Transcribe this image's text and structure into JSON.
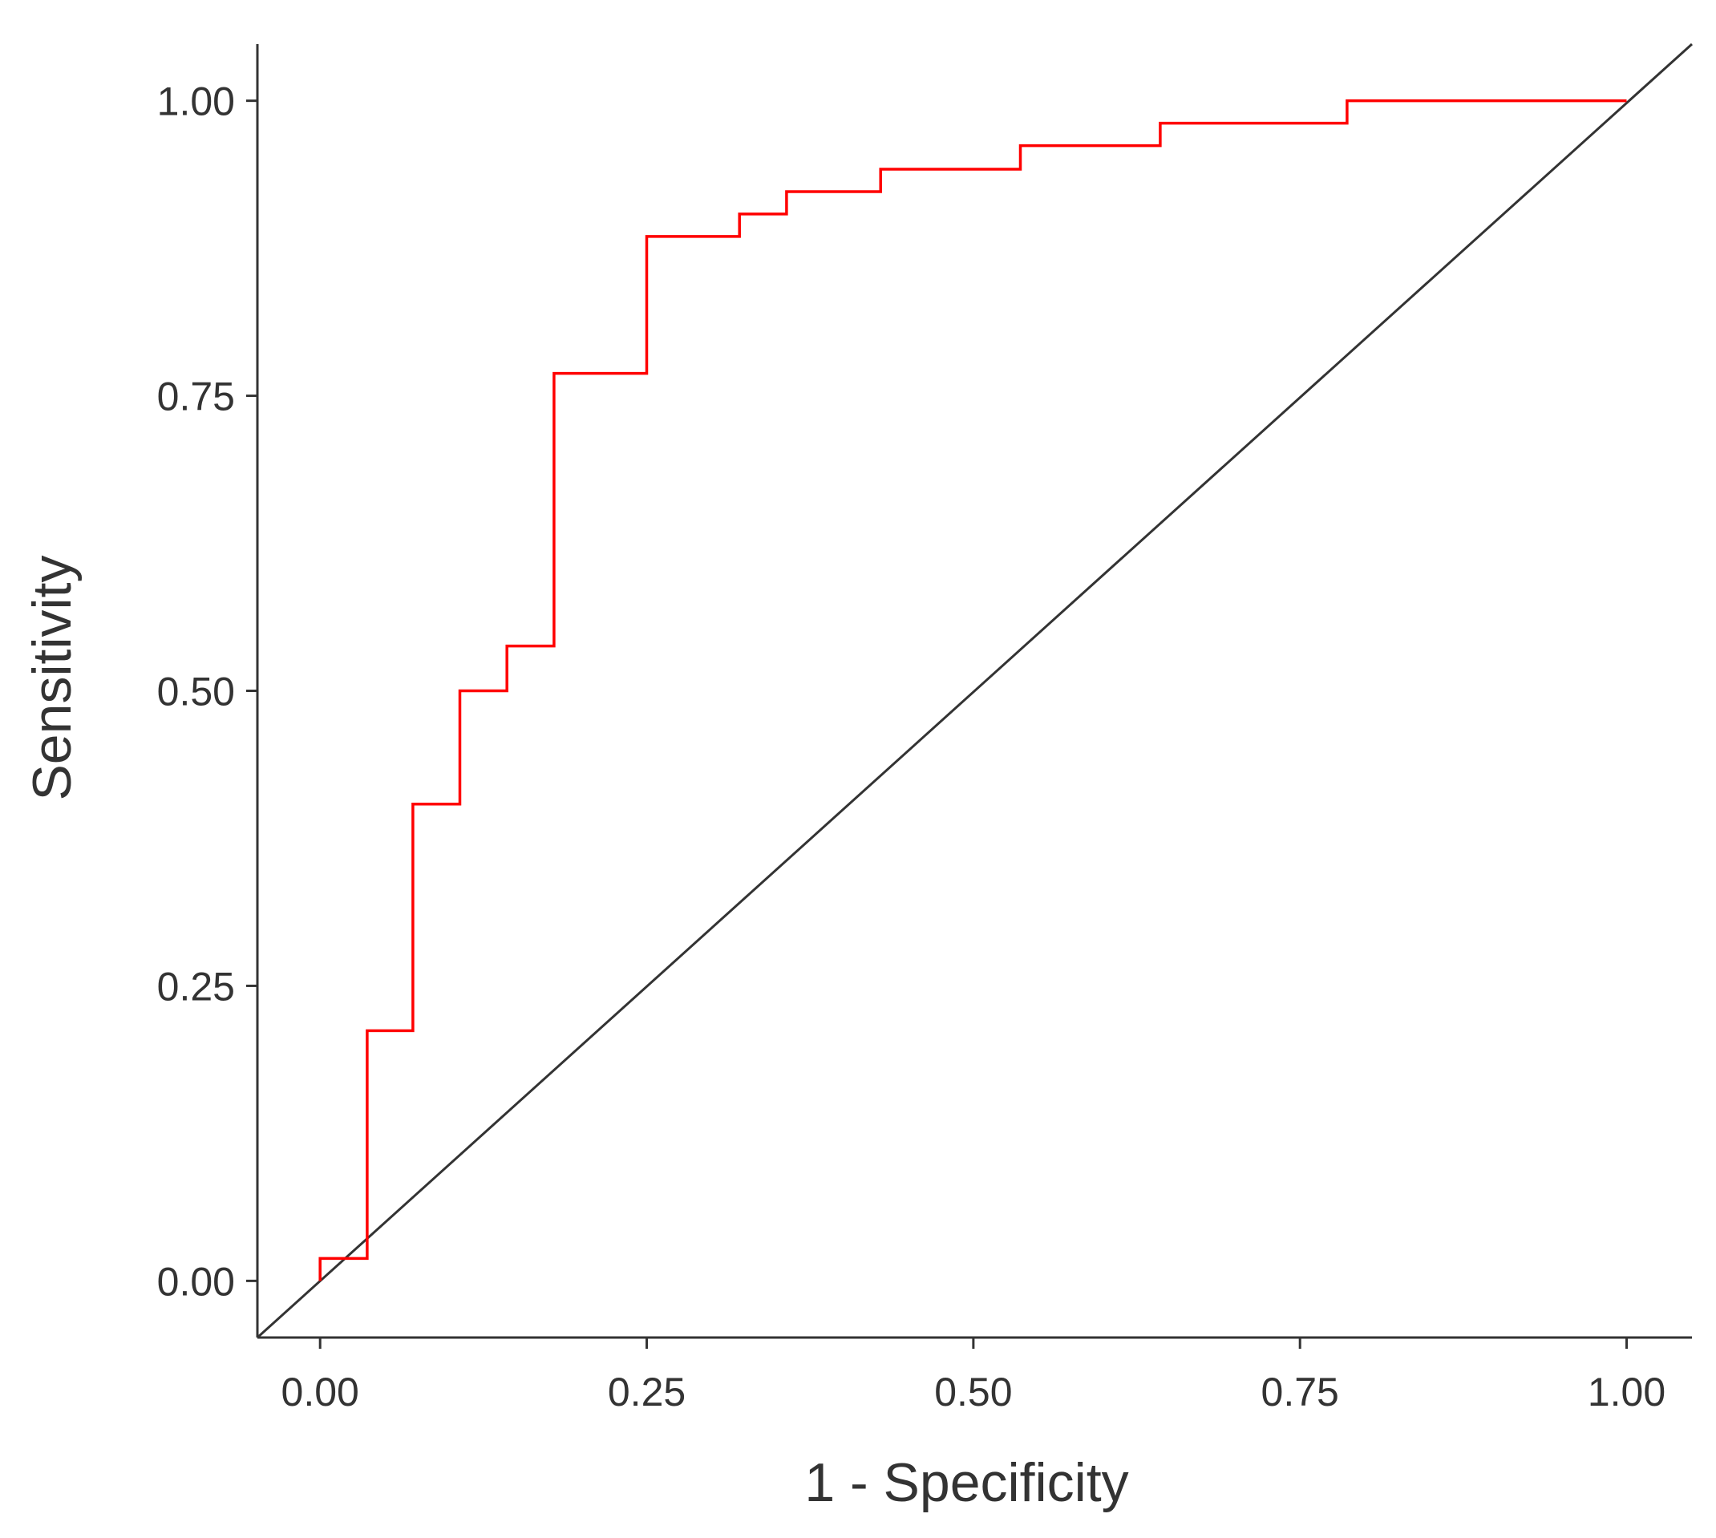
{
  "chart_data": {
    "type": "line",
    "xlabel": "1 - Specificity",
    "ylabel": "Sensitivity",
    "xlim": [
      -0.048,
      1.05
    ],
    "ylim": [
      -0.048,
      1.048
    ],
    "x_ticks": [
      0.0,
      0.25,
      0.5,
      0.75,
      1.0
    ],
    "x_tick_labels": [
      "0.00",
      "0.25",
      "0.50",
      "0.75",
      "1.00"
    ],
    "y_ticks": [
      0.0,
      0.25,
      0.5,
      0.75,
      1.0
    ],
    "y_tick_labels": [
      "0.00",
      "0.25",
      "0.50",
      "0.75",
      "1.00"
    ],
    "grid": false,
    "series": [
      {
        "color": "#ff0000",
        "step": true,
        "points": [
          [
            0.0,
            0.0
          ],
          [
            0.0,
            0.019
          ],
          [
            0.036,
            0.019
          ],
          [
            0.036,
            0.212
          ],
          [
            0.071,
            0.212
          ],
          [
            0.071,
            0.404
          ],
          [
            0.107,
            0.404
          ],
          [
            0.107,
            0.5
          ],
          [
            0.143,
            0.5
          ],
          [
            0.143,
            0.538
          ],
          [
            0.179,
            0.538
          ],
          [
            0.179,
            0.769
          ],
          [
            0.25,
            0.769
          ],
          [
            0.25,
            0.885
          ],
          [
            0.321,
            0.885
          ],
          [
            0.321,
            0.904
          ],
          [
            0.357,
            0.904
          ],
          [
            0.357,
            0.923
          ],
          [
            0.429,
            0.923
          ],
          [
            0.429,
            0.942
          ],
          [
            0.536,
            0.942
          ],
          [
            0.536,
            0.962
          ],
          [
            0.643,
            0.962
          ],
          [
            0.643,
            0.981
          ],
          [
            0.786,
            0.981
          ],
          [
            0.786,
            1.0
          ],
          [
            1.0,
            1.0
          ]
        ]
      }
    ],
    "reference_line": {
      "from": [
        -0.048,
        -0.048
      ],
      "to": [
        1.05,
        1.048
      ],
      "color": "#333333"
    }
  }
}
